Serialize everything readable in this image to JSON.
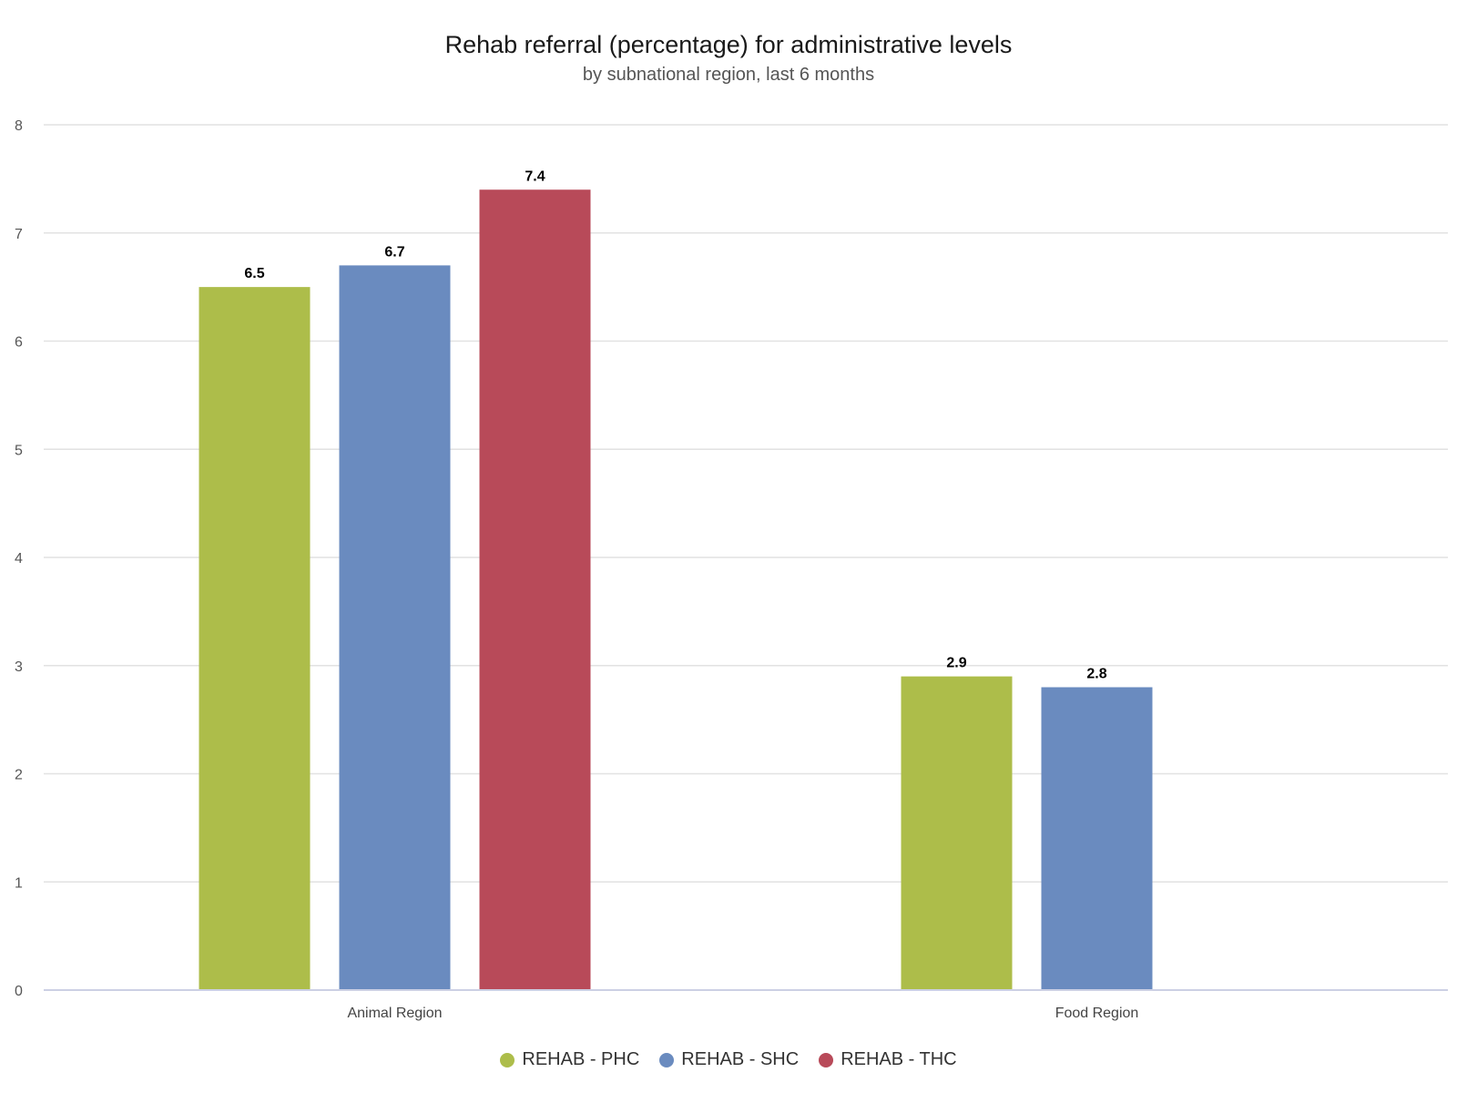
{
  "title": "Rehab referral (percentage) for administrative levels",
  "subtitle": "by subnational region, last 6 months",
  "chart_data": {
    "type": "bar",
    "categories": [
      "Animal Region",
      "Food Region"
    ],
    "series": [
      {
        "name": "REHAB - PHC",
        "color": "#adbd4a",
        "values": [
          6.5,
          2.9
        ]
      },
      {
        "name": "REHAB - SHC",
        "color": "#6a8bbf",
        "values": [
          6.7,
          2.8
        ]
      },
      {
        "name": "REHAB - THC",
        "color": "#b84a59",
        "values": [
          7.4,
          null
        ]
      }
    ],
    "ylim": [
      0,
      8
    ],
    "yticks": [
      "0",
      "1",
      "2",
      "3",
      "4",
      "5",
      "6",
      "7",
      "8"
    ],
    "grid": true,
    "data_labels": true,
    "legend_position": "bottom"
  }
}
